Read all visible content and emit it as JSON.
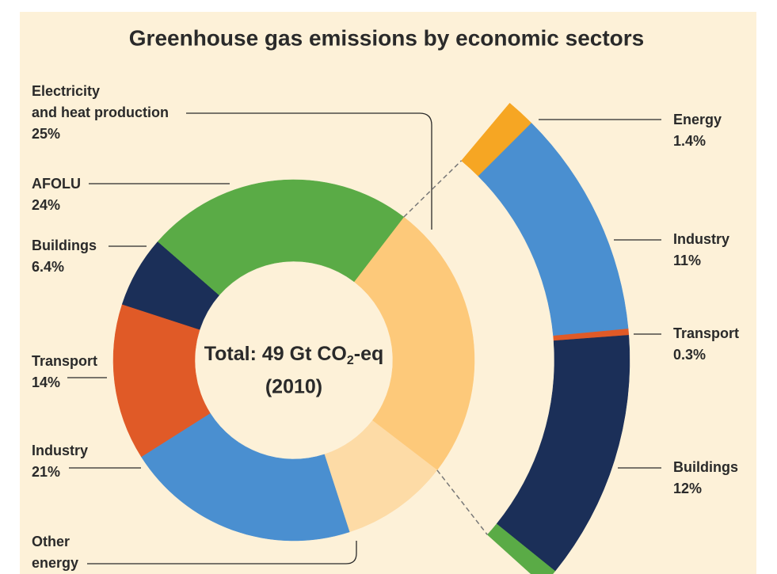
{
  "chart_data": [
    {
      "type": "donut",
      "title": "Greenhouse gas emissions by economic sectors",
      "annotation": {
        "text": "Total: 49 Gt CO",
        "subscript": "2",
        "suffix": "-eq",
        "year": "(2010)"
      },
      "categories": [
        "Electricity and heat production",
        "Other energy",
        "Industry",
        "Transport",
        "Buildings",
        "AFOLU"
      ],
      "values": [
        25,
        9.6,
        21,
        14,
        6.4,
        24
      ],
      "value_labels": [
        "25%",
        null,
        "21%",
        "14%",
        "6.4%",
        "24%"
      ],
      "colors": [
        "#fdc97a",
        "#fddba6",
        "#4a8fd0",
        "#e05a27",
        "#1b2f58",
        "#5aab46"
      ]
    },
    {
      "type": "arc",
      "categories": [
        "Energy",
        "Industry",
        "Transport",
        "Buildings",
        null
      ],
      "values": [
        1.4,
        11,
        0.3,
        12,
        0.87
      ],
      "value_labels": [
        "1.4%",
        "11%",
        "0.3%",
        "12%",
        null
      ],
      "colors": [
        "#f6a623",
        "#4a8fd0",
        "#e05a27",
        "#1b2f58",
        "#5aab46"
      ]
    }
  ]
}
